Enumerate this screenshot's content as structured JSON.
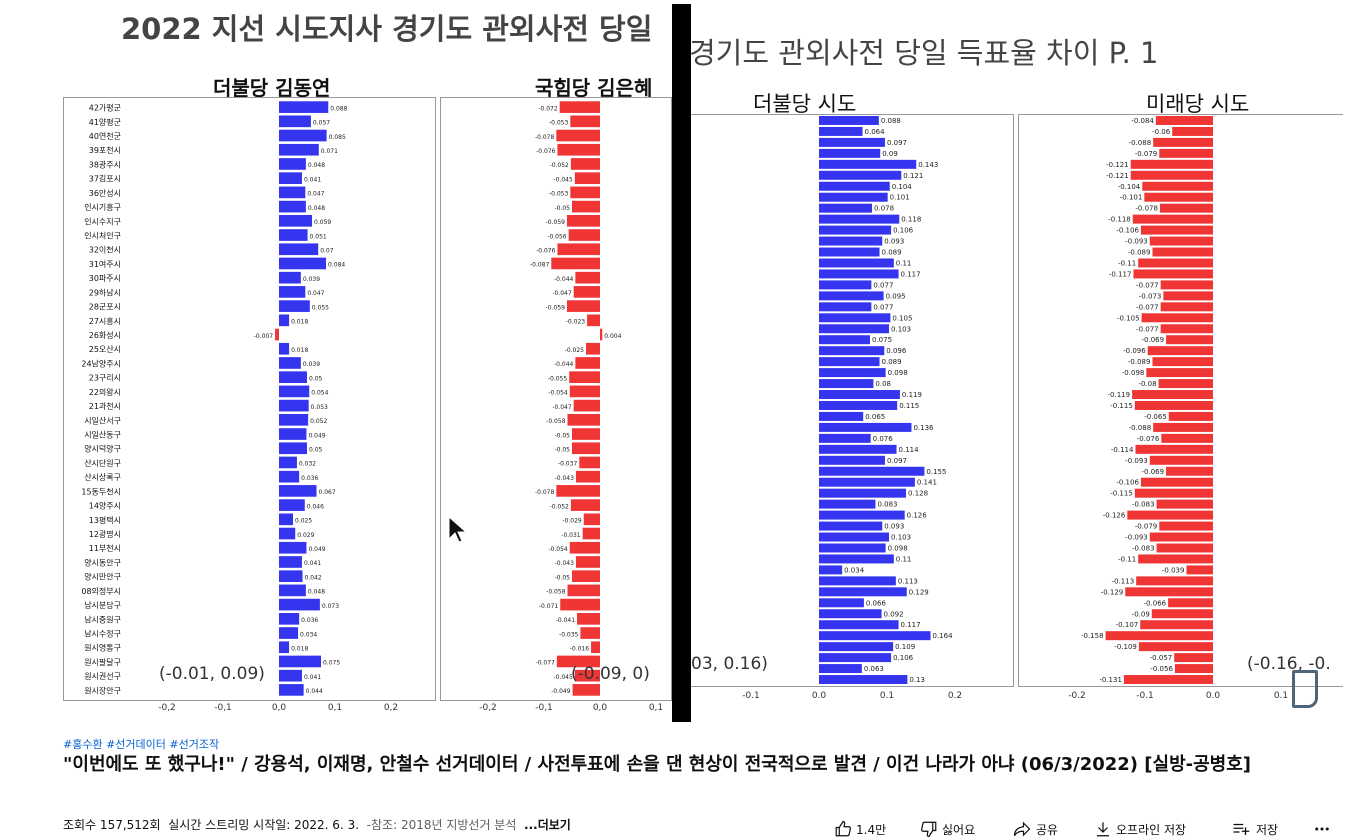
{
  "video": {
    "left": {
      "title": "2022 지선 시도지사  경기도 관외사전 당일",
      "dem_header": "더불당 김동연",
      "ppp_header": "국힘당 김은혜",
      "dem_range": "(-0.01, 0.09)",
      "ppp_range": "(-0.09, 0)",
      "dem_ticks": [
        "-0,2",
        "-0,1",
        "0,0",
        "0,1",
        "0,2"
      ],
      "ppp_ticks": [
        "-0,2",
        "-0,1",
        "0,0",
        "0,1"
      ],
      "colors": {
        "dem": "#3535f0",
        "ppp": "#f03535"
      },
      "chart_data": {
        "type": "bar",
        "orientation": "horizontal",
        "categories": [
          "42가평군",
          "41양평군",
          "40연천군",
          "39포천시",
          "38광주시",
          "37김포시",
          "36안성시",
          "인시기흥구",
          "인시수지구",
          "인시처인구",
          "32이천시",
          "31여주시",
          "30파주시",
          "29하남시",
          "28군포시",
          "27시흥시",
          "26화성시",
          "25오산시",
          "24남양주시",
          "23구리시",
          "22의왕시",
          "21과천시",
          "시일산서구",
          "시일산동구",
          "양시덕양구",
          "산시단원구",
          "산시상록구",
          "15동두천시",
          "14양주시",
          "13평택시",
          "12광명시",
          "11부천시",
          "양시동안구",
          "양시만안구",
          "08의정부시",
          "남시분당구",
          "남시중원구",
          "남시수정구",
          "원시영통구",
          "원시팔달구",
          "원시권선구",
          "원시장안구"
        ],
        "series": [
          {
            "name": "더불당 김동연",
            "values": [
              0.088,
              0.057,
              0.085,
              0.071,
              0.048,
              0.041,
              0.047,
              0.048,
              0.059,
              0.051,
              0.07,
              0.084,
              0.039,
              0.047,
              0.055,
              0.018,
              -0.007,
              0.018,
              0.039,
              0.05,
              0.054,
              0.053,
              0.052,
              0.049,
              0.05,
              0.032,
              0.036,
              0.067,
              0.046,
              0.025,
              0.029,
              0.049,
              0.041,
              0.042,
              0.048,
              0.073,
              0.036,
              0.034,
              0.018,
              0.075,
              0.041,
              0.044
            ]
          },
          {
            "name": "국힘당 김은혜",
            "values": [
              -0.072,
              -0.053,
              -0.078,
              -0.076,
              -0.052,
              -0.045,
              -0.053,
              -0.05,
              -0.059,
              -0.056,
              -0.076,
              -0.087,
              -0.044,
              -0.047,
              -0.059,
              -0.023,
              0.004,
              -0.025,
              -0.044,
              -0.055,
              -0.054,
              -0.047,
              -0.058,
              -0.05,
              -0.05,
              -0.037,
              -0.043,
              -0.078,
              -0.052,
              -0.029,
              -0.031,
              -0.054,
              -0.043,
              -0.05,
              -0.058,
              -0.071,
              -0.041,
              -0.035,
              -0.016,
              -0.077,
              -0.045,
              -0.049
            ]
          }
        ]
      }
    },
    "right": {
      "title": "경기도 관외사전 당일 득표율 차이 P. 1",
      "dem_header": "더불당 시도",
      "ppp_header": "미래당 시도",
      "dem_range": "03, 0.16)",
      "ppp_range": "(-0.16, -0.",
      "dem_ticks": [
        "-0.1",
        "0.0",
        "0.1",
        "0.2"
      ],
      "ppp_ticks": [
        "-0.2",
        "-0.1",
        "0.0",
        "0.1"
      ],
      "chart_data": {
        "type": "bar",
        "orientation": "horizontal",
        "series": [
          {
            "name": "더불당 시도",
            "values": [
              0.088,
              0.064,
              0.097,
              0.09,
              0.143,
              0.121,
              0.104,
              0.101,
              0.078,
              0.118,
              0.106,
              0.093,
              0.089,
              0.11,
              0.117,
              0.077,
              0.095,
              0.077,
              0.105,
              0.103,
              0.075,
              0.096,
              0.089,
              0.098,
              0.08,
              0.119,
              0.115,
              0.065,
              0.136,
              0.076,
              0.114,
              0.097,
              0.155,
              0.141,
              0.128,
              0.083,
              0.126,
              0.093,
              0.103,
              0.098,
              0.11,
              0.034,
              0.113,
              0.129,
              0.066,
              0.092,
              0.117,
              0.164,
              0.109,
              0.106,
              0.063,
              0.13
            ]
          },
          {
            "name": "미래당 시도",
            "values": [
              -0.084,
              -0.06,
              -0.088,
              -0.079,
              -0.121,
              -0.121,
              -0.104,
              -0.101,
              -0.078,
              -0.118,
              -0.106,
              -0.093,
              -0.089,
              -0.11,
              -0.117,
              -0.077,
              -0.073,
              -0.077,
              -0.105,
              -0.077,
              -0.069,
              -0.096,
              -0.089,
              -0.098,
              -0.08,
              -0.119,
              -0.115,
              -0.065,
              -0.088,
              -0.076,
              -0.114,
              -0.093,
              -0.069,
              -0.106,
              -0.115,
              -0.083,
              -0.126,
              -0.079,
              -0.093,
              -0.083,
              -0.11,
              -0.039,
              -0.113,
              -0.129,
              -0.066,
              -0.09,
              -0.107,
              -0.158,
              -0.109,
              -0.057,
              -0.056,
              -0.131
            ]
          }
        ]
      }
    },
    "watermark_letter": "D"
  },
  "hashtags": "#홍수환 #선거데이터 #선거조작",
  "title": "\"이번에도 또 했구나!\" / 강용석, 이재명, 안철수 선거데이터 / 사전투표에 손을 댄 현상이 전국적으로 발견 / 이건 나라가 아냐 (06/3/2022) [실방-공병호]",
  "views": "조회수 157,512회",
  "stream_date": "실시간 스트리밍 시작일: 2022. 6. 3.",
  "desc_snippet": "-참조: 2018년 지방선거 분석",
  "more_label": "...더보기",
  "actions": {
    "like_count": "1.4만",
    "dislike_label": "싫어요",
    "share_label": "공유",
    "download_label": "오프라인 저장",
    "save_label": "저장",
    "more_icon": "more-horiz-icon"
  }
}
